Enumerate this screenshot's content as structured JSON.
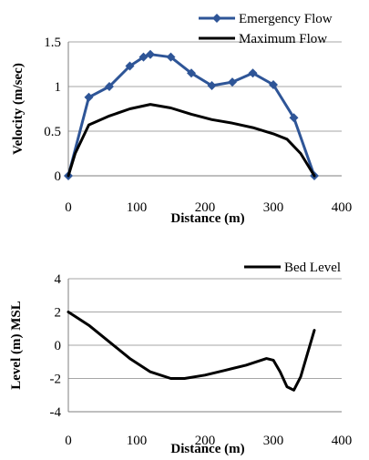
{
  "chart_data": [
    {
      "type": "line",
      "title": "",
      "xlabel": "Distance (m)",
      "ylabel": "Velocity (m/sec)",
      "xlim": [
        0,
        400
      ],
      "ylim": [
        0,
        1.5
      ],
      "xticks": [
        "0",
        "100",
        "200",
        "300",
        "400"
      ],
      "yticks": [
        "0",
        "0.5",
        "1",
        "1.5"
      ],
      "grid": "horizontal",
      "legend": "top-right",
      "series": [
        {
          "name": "Emergency Flow",
          "color": "#2e5597",
          "marker": "diamond",
          "x": [
            0,
            30,
            60,
            90,
            110,
            120,
            150,
            180,
            210,
            240,
            270,
            300,
            330,
            360
          ],
          "y": [
            0,
            0.88,
            1.0,
            1.23,
            1.33,
            1.36,
            1.33,
            1.15,
            1.01,
            1.05,
            1.15,
            1.02,
            0.65,
            0
          ]
        },
        {
          "name": "Maximum Flow",
          "color": "#000000",
          "marker": "none",
          "x": [
            0,
            10,
            30,
            60,
            90,
            120,
            150,
            180,
            210,
            240,
            270,
            300,
            320,
            340,
            360
          ],
          "y": [
            0,
            0.25,
            0.57,
            0.67,
            0.75,
            0.8,
            0.76,
            0.69,
            0.63,
            0.59,
            0.54,
            0.47,
            0.41,
            0.25,
            0
          ]
        }
      ]
    },
    {
      "type": "line",
      "title": "",
      "xlabel": "Distance (m)",
      "ylabel": "Level (m) MSL",
      "xlim": [
        0,
        400
      ],
      "ylim": [
        -4,
        4
      ],
      "xticks": [
        "0",
        "100",
        "200",
        "300",
        "400"
      ],
      "yticks": [
        "-4",
        "-2",
        "0",
        "2",
        "4"
      ],
      "grid": "horizontal",
      "legend": "top-right",
      "series": [
        {
          "name": "Bed Level",
          "color": "#000000",
          "marker": "none",
          "x": [
            0,
            30,
            60,
            90,
            120,
            150,
            170,
            200,
            230,
            260,
            290,
            300,
            310,
            320,
            330,
            340,
            350,
            360
          ],
          "y": [
            2.0,
            1.2,
            0.2,
            -0.8,
            -1.6,
            -2.0,
            -2.0,
            -1.8,
            -1.5,
            -1.2,
            -0.8,
            -0.9,
            -1.6,
            -2.5,
            -2.7,
            -1.9,
            -0.5,
            0.9
          ]
        }
      ]
    }
  ]
}
